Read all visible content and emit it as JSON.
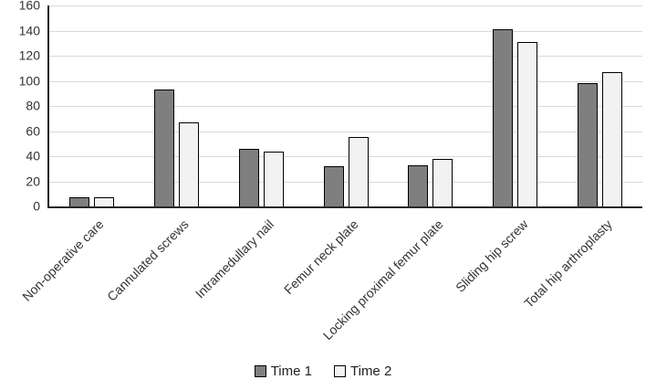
{
  "chart_data": {
    "type": "bar",
    "title": "",
    "categories": [
      "Non-operative care",
      "Cannulated screws",
      "Intramedullary nail",
      "Femur neck plate",
      "Locking proximal femur plate",
      "Sliding hip screw",
      "Total hip arthroplasty"
    ],
    "series": [
      {
        "name": "Time 1",
        "values": [
          7,
          93,
          46,
          32,
          33,
          141,
          98
        ],
        "fill": "#7f7f7f",
        "border": "#000000"
      },
      {
        "name": "Time 2",
        "values": [
          7,
          67,
          44,
          55,
          38,
          131,
          107
        ],
        "fill": "#f2f2f2",
        "border": "#000000"
      }
    ],
    "xlabel": "",
    "ylabel": "",
    "ylim": [
      0,
      160
    ],
    "yticks": [
      0,
      20,
      40,
      60,
      80,
      100,
      120,
      140,
      160
    ],
    "grid": true,
    "legend_position": "bottom",
    "colors": {
      "gridline": "#d9d9d9",
      "axis": "#262626",
      "text": "#333333",
      "background": "#ffffff"
    }
  }
}
